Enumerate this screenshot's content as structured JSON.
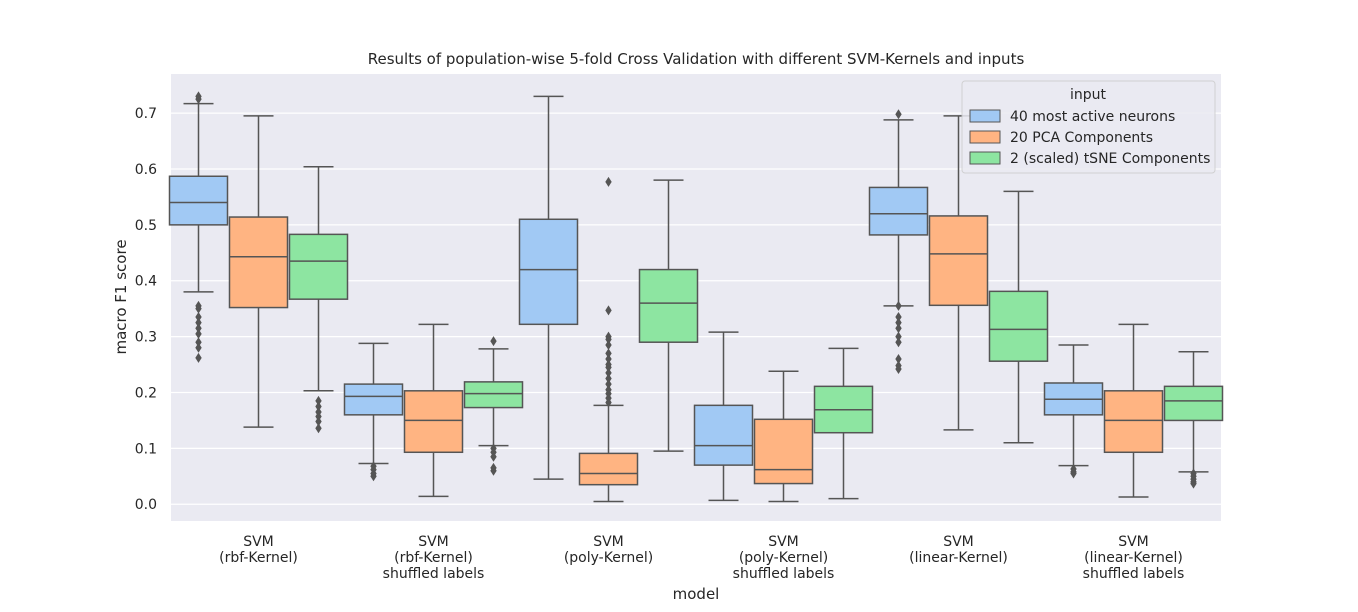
{
  "chart_data": {
    "type": "boxplot",
    "title": "Results of population-wise 5-fold Cross Validation with different SVM-Kernels and inputs",
    "xlabel": "model",
    "ylabel": "macro F1 score",
    "ylim": [
      -0.03,
      0.77
    ],
    "yticks": [
      "0.0",
      "0.1",
      "0.2",
      "0.3",
      "0.4",
      "0.5",
      "0.6",
      "0.7"
    ],
    "grid": true,
    "legend": {
      "title": "input",
      "placement": "top-right"
    },
    "categories": [
      [
        "SVM",
        "(rbf-Kernel)"
      ],
      [
        "SVM",
        "(rbf-Kernel)",
        "shuffled labels"
      ],
      [
        "SVM",
        "(poly-Kernel)"
      ],
      [
        "SVM",
        "(poly-Kernel)",
        "shuffled labels"
      ],
      [
        "SVM",
        "(linear-Kernel)"
      ],
      [
        "SVM",
        "(linear-Kernel)",
        "shuffled labels"
      ]
    ],
    "series": [
      {
        "name": "40 most active neurons",
        "color": "#a1c9f4",
        "boxes": [
          {
            "whislo": 0.38,
            "q1": 0.5,
            "med": 0.54,
            "q3": 0.587,
            "whishi": 0.717,
            "fliers": [
              0.725,
              0.73,
              0.355,
              0.35,
              0.335,
              0.325,
              0.315,
              0.305,
              0.29,
              0.28,
              0.262
            ]
          },
          {
            "whislo": 0.073,
            "q1": 0.16,
            "med": 0.193,
            "q3": 0.215,
            "whishi": 0.288,
            "fliers": [
              0.068,
              0.062,
              0.055,
              0.05
            ]
          },
          {
            "whislo": 0.045,
            "q1": 0.322,
            "med": 0.42,
            "q3": 0.51,
            "whishi": 0.73,
            "fliers": []
          },
          {
            "whislo": 0.007,
            "q1": 0.07,
            "med": 0.105,
            "q3": 0.177,
            "whishi": 0.308,
            "fliers": []
          },
          {
            "whislo": 0.355,
            "q1": 0.482,
            "med": 0.52,
            "q3": 0.567,
            "whishi": 0.688,
            "fliers": [
              0.698,
              0.355,
              0.335,
              0.325,
              0.315,
              0.3,
              0.29,
              0.26,
              0.248,
              0.242
            ]
          },
          {
            "whislo": 0.069,
            "q1": 0.16,
            "med": 0.188,
            "q3": 0.217,
            "whishi": 0.285,
            "fliers": [
              0.063,
              0.058,
              0.055
            ]
          }
        ]
      },
      {
        "name": "20 PCA Components",
        "color": "#ffb482",
        "boxes": [
          {
            "whislo": 0.138,
            "q1": 0.352,
            "med": 0.443,
            "q3": 0.514,
            "whishi": 0.695,
            "fliers": []
          },
          {
            "whislo": 0.014,
            "q1": 0.093,
            "med": 0.15,
            "q3": 0.203,
            "whishi": 0.322,
            "fliers": []
          },
          {
            "whislo": 0.005,
            "q1": 0.035,
            "med": 0.055,
            "q3": 0.091,
            "whishi": 0.177,
            "fliers": [
              0.577,
              0.347,
              0.3,
              0.295,
              0.285,
              0.27,
              0.26,
              0.25,
              0.245,
              0.235,
              0.225,
              0.215,
              0.205,
              0.198,
              0.19,
              0.182
            ]
          },
          {
            "whislo": 0.005,
            "q1": 0.037,
            "med": 0.062,
            "q3": 0.152,
            "whishi": 0.238,
            "fliers": []
          },
          {
            "whislo": 0.133,
            "q1": 0.356,
            "med": 0.448,
            "q3": 0.516,
            "whishi": 0.695,
            "fliers": []
          },
          {
            "whislo": 0.013,
            "q1": 0.093,
            "med": 0.15,
            "q3": 0.203,
            "whishi": 0.322,
            "fliers": []
          }
        ]
      },
      {
        "name": "2 (scaled) tSNE Components",
        "color": "#8de5a1",
        "boxes": [
          {
            "whislo": 0.203,
            "q1": 0.367,
            "med": 0.435,
            "q3": 0.483,
            "whishi": 0.604,
            "fliers": [
              0.185,
              0.175,
              0.165,
              0.157,
              0.148,
              0.136
            ]
          },
          {
            "whislo": 0.105,
            "q1": 0.173,
            "med": 0.198,
            "q3": 0.219,
            "whishi": 0.278,
            "fliers": [
              0.292,
              0.1,
              0.093,
              0.085,
              0.065,
              0.06
            ]
          },
          {
            "whislo": 0.095,
            "q1": 0.29,
            "med": 0.36,
            "q3": 0.42,
            "whishi": 0.58,
            "fliers": []
          },
          {
            "whislo": 0.01,
            "q1": 0.128,
            "med": 0.169,
            "q3": 0.211,
            "whishi": 0.279,
            "fliers": []
          },
          {
            "whislo": 0.11,
            "q1": 0.256,
            "med": 0.313,
            "q3": 0.381,
            "whishi": 0.56,
            "fliers": []
          },
          {
            "whislo": 0.058,
            "q1": 0.15,
            "med": 0.185,
            "q3": 0.211,
            "whishi": 0.273,
            "fliers": [
              0.055,
              0.05,
              0.045,
              0.04,
              0.037
            ]
          }
        ]
      }
    ]
  }
}
